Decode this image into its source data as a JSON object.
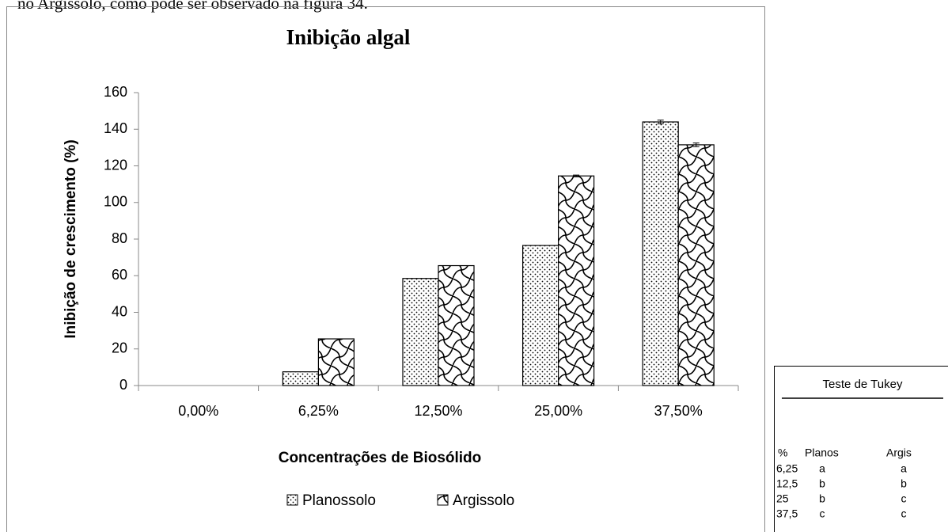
{
  "caption_text": "no Argissolo, como pode ser observado na figura 34.",
  "chart_data": {
    "type": "bar",
    "title": "Inibição algal",
    "x_label": "Concentrações de Biosólido",
    "y_label": "Inibição de crescimento (%)",
    "categories": [
      "0,00%",
      "6,25%",
      "12,50%",
      "25,00%",
      "37,50%"
    ],
    "series": [
      {
        "name": "Planossolo",
        "color": "#000000",
        "pattern": "dots",
        "values": [
          0,
          7.5,
          58.5,
          76.5,
          144
        ],
        "errors": [
          0,
          0,
          0,
          0,
          1
        ]
      },
      {
        "name": "Argissolo",
        "color": "#000000",
        "pattern": "waves",
        "values": [
          0,
          25.5,
          65.5,
          114.5,
          131.5
        ],
        "errors": [
          0,
          0,
          0,
          0.5,
          1
        ]
      }
    ],
    "ylim": [
      0,
      160
    ],
    "yticks": [
      0,
      20,
      40,
      60,
      80,
      100,
      120,
      140,
      160
    ],
    "grid": false,
    "legend": "bottom"
  },
  "tukey_table": {
    "title": "Teste de Tukey",
    "header": [
      "%",
      "Planos",
      "Argis"
    ],
    "rows": [
      [
        "6,25",
        "a",
        "a"
      ],
      [
        "12,5",
        "b",
        "b"
      ],
      [
        "25",
        "b",
        "c"
      ],
      [
        "37,5",
        "c",
        "c"
      ]
    ]
  }
}
